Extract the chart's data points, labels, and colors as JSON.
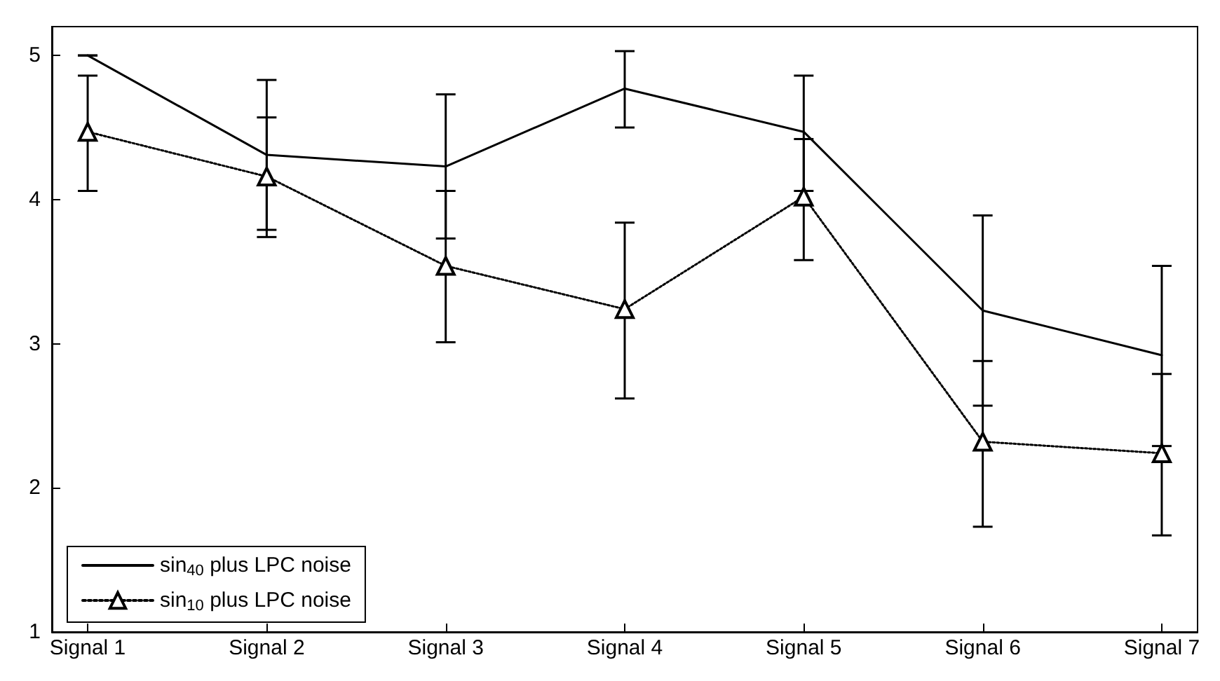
{
  "chart_data": {
    "type": "line",
    "categories": [
      "Signal 1",
      "Signal 2",
      "Signal 3",
      "Signal 4",
      "Signal 5",
      "Signal 6",
      "Signal 7"
    ],
    "ylim": [
      1,
      5.2
    ],
    "yticks": [
      1,
      2,
      3,
      4,
      5
    ],
    "legend": "bottom left",
    "series": [
      {
        "name": "sin$_{40}$ plus LPC noise",
        "color": "#000000",
        "marker": "none",
        "line_style": "solid",
        "values": [
          5.0,
          4.31,
          4.23,
          4.77,
          4.47,
          3.23,
          2.92
        ],
        "errors": [
          [
            5.0,
            5.0
          ],
          [
            3.79,
            4.83
          ],
          [
            3.73,
            4.73
          ],
          [
            4.5,
            5.03
          ],
          [
            4.06,
            4.86
          ],
          [
            2.57,
            3.89
          ],
          [
            2.29,
            3.54
          ]
        ]
      },
      {
        "name": "sin$_{10}$ plus LPC noise",
        "color": "#000000",
        "marker": "triangle",
        "line_style": "dotted",
        "values": [
          4.47,
          4.16,
          3.54,
          3.24,
          4.02,
          2.32,
          2.24
        ],
        "errors": [
          [
            4.06,
            4.86
          ],
          [
            3.74,
            4.57
          ],
          [
            3.01,
            4.06
          ],
          [
            2.62,
            3.84
          ],
          [
            3.58,
            4.42
          ],
          [
            1.73,
            2.88
          ],
          [
            1.67,
            2.79
          ]
        ]
      }
    ]
  }
}
